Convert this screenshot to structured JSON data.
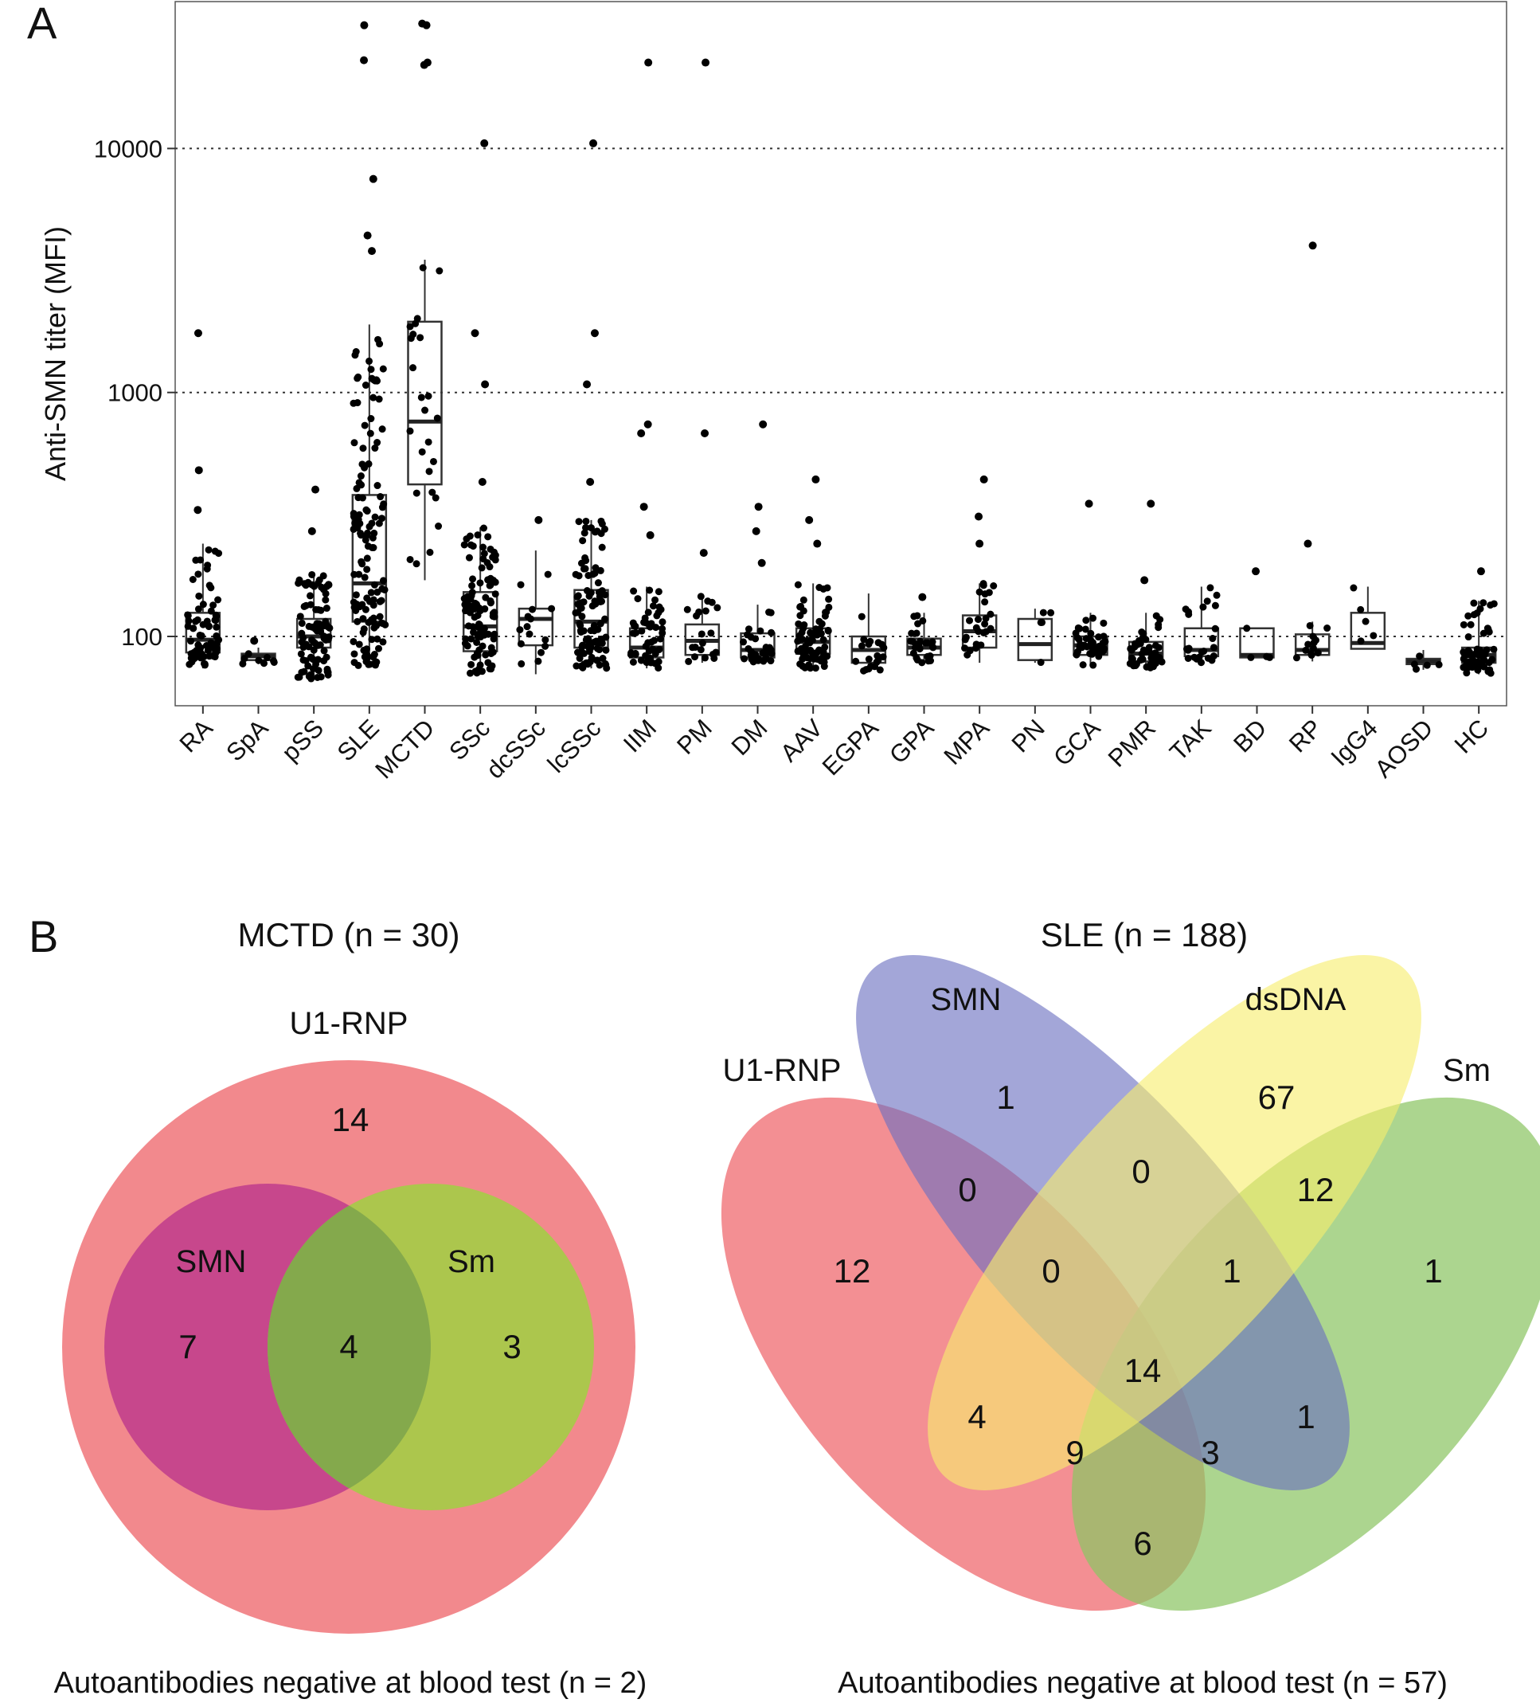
{
  "panel_a": {
    "label": "A",
    "chart_data": {
      "type": "box",
      "ylabel": "Anti-SMN titer (MFI)",
      "yscale": "log",
      "ylim": [
        52,
        40000
      ],
      "yticks": [
        100,
        1000,
        10000
      ],
      "ytick_labels": [
        "100",
        "1000",
        "10000"
      ],
      "grid": "horizontal-dotted",
      "categories": [
        "RA",
        "SpA",
        "pSS",
        "SLE",
        "MCTD",
        "SSc",
        "dcSSc",
        "lcSSc",
        "IIM",
        "PM",
        "DM",
        "AAV",
        "EGPA",
        "GPA",
        "MPA",
        "PN",
        "GCA",
        "PMR",
        "TAK",
        "BD",
        "RP",
        "IgG4",
        "AOSD",
        "HC"
      ],
      "boxes": [
        {
          "q1": 86,
          "median": 97,
          "q3": 125,
          "wlo": 74,
          "whi": 240,
          "n": 70,
          "outliers": [
            330,
            480,
            1750
          ]
        },
        {
          "q1": 80,
          "median": 83,
          "q3": 85,
          "wlo": 77,
          "whi": 90,
          "n": 8,
          "outliers": [
            96
          ]
        },
        {
          "q1": 90,
          "median": 100,
          "q3": 118,
          "wlo": 67,
          "whi": 180,
          "n": 90,
          "outliers": [
            270,
            400
          ]
        },
        {
          "q1": 115,
          "median": 165,
          "q3": 380,
          "wlo": 75,
          "whi": 1900,
          "n": 130,
          "outliers": [
            3800,
            4400,
            7500,
            23000,
            32000
          ]
        },
        {
          "q1": 420,
          "median": 760,
          "q3": 1950,
          "wlo": 170,
          "whi": 3500,
          "n": 25,
          "outliers": [
            22000,
            22500,
            32000,
            32500
          ]
        },
        {
          "q1": 87,
          "median": 110,
          "q3": 152,
          "wlo": 70,
          "whi": 280,
          "n": 100,
          "outliers": [
            430,
            1080,
            1750,
            10500
          ]
        },
        {
          "q1": 92,
          "median": 118,
          "q3": 130,
          "wlo": 70,
          "whi": 225,
          "n": 15,
          "outliers": [
            300
          ]
        },
        {
          "q1": 90,
          "median": 115,
          "q3": 155,
          "wlo": 74,
          "whi": 300,
          "n": 100,
          "outliers": [
            430,
            1080,
            1750,
            10500
          ]
        },
        {
          "q1": 82,
          "median": 90,
          "q3": 108,
          "wlo": 74,
          "whi": 160,
          "n": 50,
          "outliers": [
            260,
            340,
            680,
            740,
            22500
          ]
        },
        {
          "q1": 84,
          "median": 96,
          "q3": 112,
          "wlo": 78,
          "whi": 150,
          "n": 20,
          "outliers": [
            220,
            680,
            22500
          ]
        },
        {
          "q1": 82,
          "median": 88,
          "q3": 103,
          "wlo": 78,
          "whi": 135,
          "n": 30,
          "outliers": [
            200,
            270,
            340,
            740
          ]
        },
        {
          "q1": 85,
          "median": 95,
          "q3": 108,
          "wlo": 74,
          "whi": 165,
          "n": 70,
          "outliers": [
            240,
            300,
            440
          ]
        },
        {
          "q1": 78,
          "median": 88,
          "q3": 100,
          "wlo": 72,
          "whi": 150,
          "n": 20,
          "outliers": []
        },
        {
          "q1": 84,
          "median": 90,
          "q3": 98,
          "wlo": 78,
          "whi": 125,
          "n": 25,
          "outliers": [
            145
          ]
        },
        {
          "q1": 90,
          "median": 105,
          "q3": 122,
          "wlo": 78,
          "whi": 165,
          "n": 25,
          "outliers": [
            240,
            310,
            440
          ]
        },
        {
          "q1": 80,
          "median": 93,
          "q3": 118,
          "wlo": 78,
          "whi": 130,
          "n": 5,
          "outliers": []
        },
        {
          "q1": 84,
          "median": 92,
          "q3": 100,
          "wlo": 76,
          "whi": 125,
          "n": 40,
          "outliers": [
            350
          ]
        },
        {
          "q1": 79,
          "median": 85,
          "q3": 95,
          "wlo": 74,
          "whi": 125,
          "n": 45,
          "outliers": [
            170,
            350
          ]
        },
        {
          "q1": 83,
          "median": 88,
          "q3": 108,
          "wlo": 78,
          "whi": 160,
          "n": 25,
          "outliers": []
        },
        {
          "q1": 82,
          "median": 84,
          "q3": 108,
          "wlo": 82,
          "whi": 108,
          "n": 4,
          "outliers": [
            185
          ]
        },
        {
          "q1": 84,
          "median": 88,
          "q3": 102,
          "wlo": 79,
          "whi": 115,
          "n": 12,
          "outliers": [
            240,
            4000
          ]
        },
        {
          "q1": 89,
          "median": 94,
          "q3": 125,
          "wlo": 89,
          "whi": 160,
          "n": 5,
          "outliers": []
        },
        {
          "q1": 77,
          "median": 79,
          "q3": 81,
          "wlo": 73,
          "whi": 88,
          "n": 5,
          "outliers": []
        },
        {
          "q1": 78,
          "median": 84,
          "q3": 90,
          "wlo": 70,
          "whi": 140,
          "n": 60,
          "outliers": [
            185
          ]
        }
      ]
    }
  },
  "panel_b": {
    "label": "B",
    "mctd": {
      "title": "MCTD (n = 30)",
      "sets": {
        "u1rnp": "U1-RNP",
        "smn": "SMN",
        "sm": "Sm"
      },
      "counts": {
        "u1rnp_only": "14",
        "smn_only": "7",
        "smn_sm": "4",
        "sm_only": "3"
      },
      "footer": "Autoantibodies negative at blood test (n = 2)"
    },
    "sle": {
      "title": "SLE (n = 188)",
      "sets": {
        "u1rnp": "U1-RNP",
        "smn": "SMN",
        "dsdna": "dsDNA",
        "sm": "Sm"
      },
      "counts": {
        "smn_only": "1",
        "dsdna_only": "67",
        "u1rnp_only": "12",
        "sm_only": "1",
        "u1rnp_smn": "0",
        "smn_dsdna": "0",
        "dsdna_sm": "12",
        "u1rnp_smn_dsdna": "0",
        "smn_dsdna_sm": "1",
        "all_four": "14",
        "u1rnp_dsdna": "4",
        "smn_sm": "1",
        "u1rnp_dsdna_sm": "9",
        "u1rnp_smn_sm": "3",
        "u1rnp_sm": "6"
      },
      "footer": "Autoantibodies negative at blood test (n = 57)"
    },
    "colors": {
      "u1rnp": "#ef6f74",
      "smn": "#6a6fc0",
      "dsdna": "#f7ee6e",
      "sm": "#8cc564",
      "mctd_smn": "#c2408c",
      "mctd_sm": "#a6cb48"
    }
  }
}
